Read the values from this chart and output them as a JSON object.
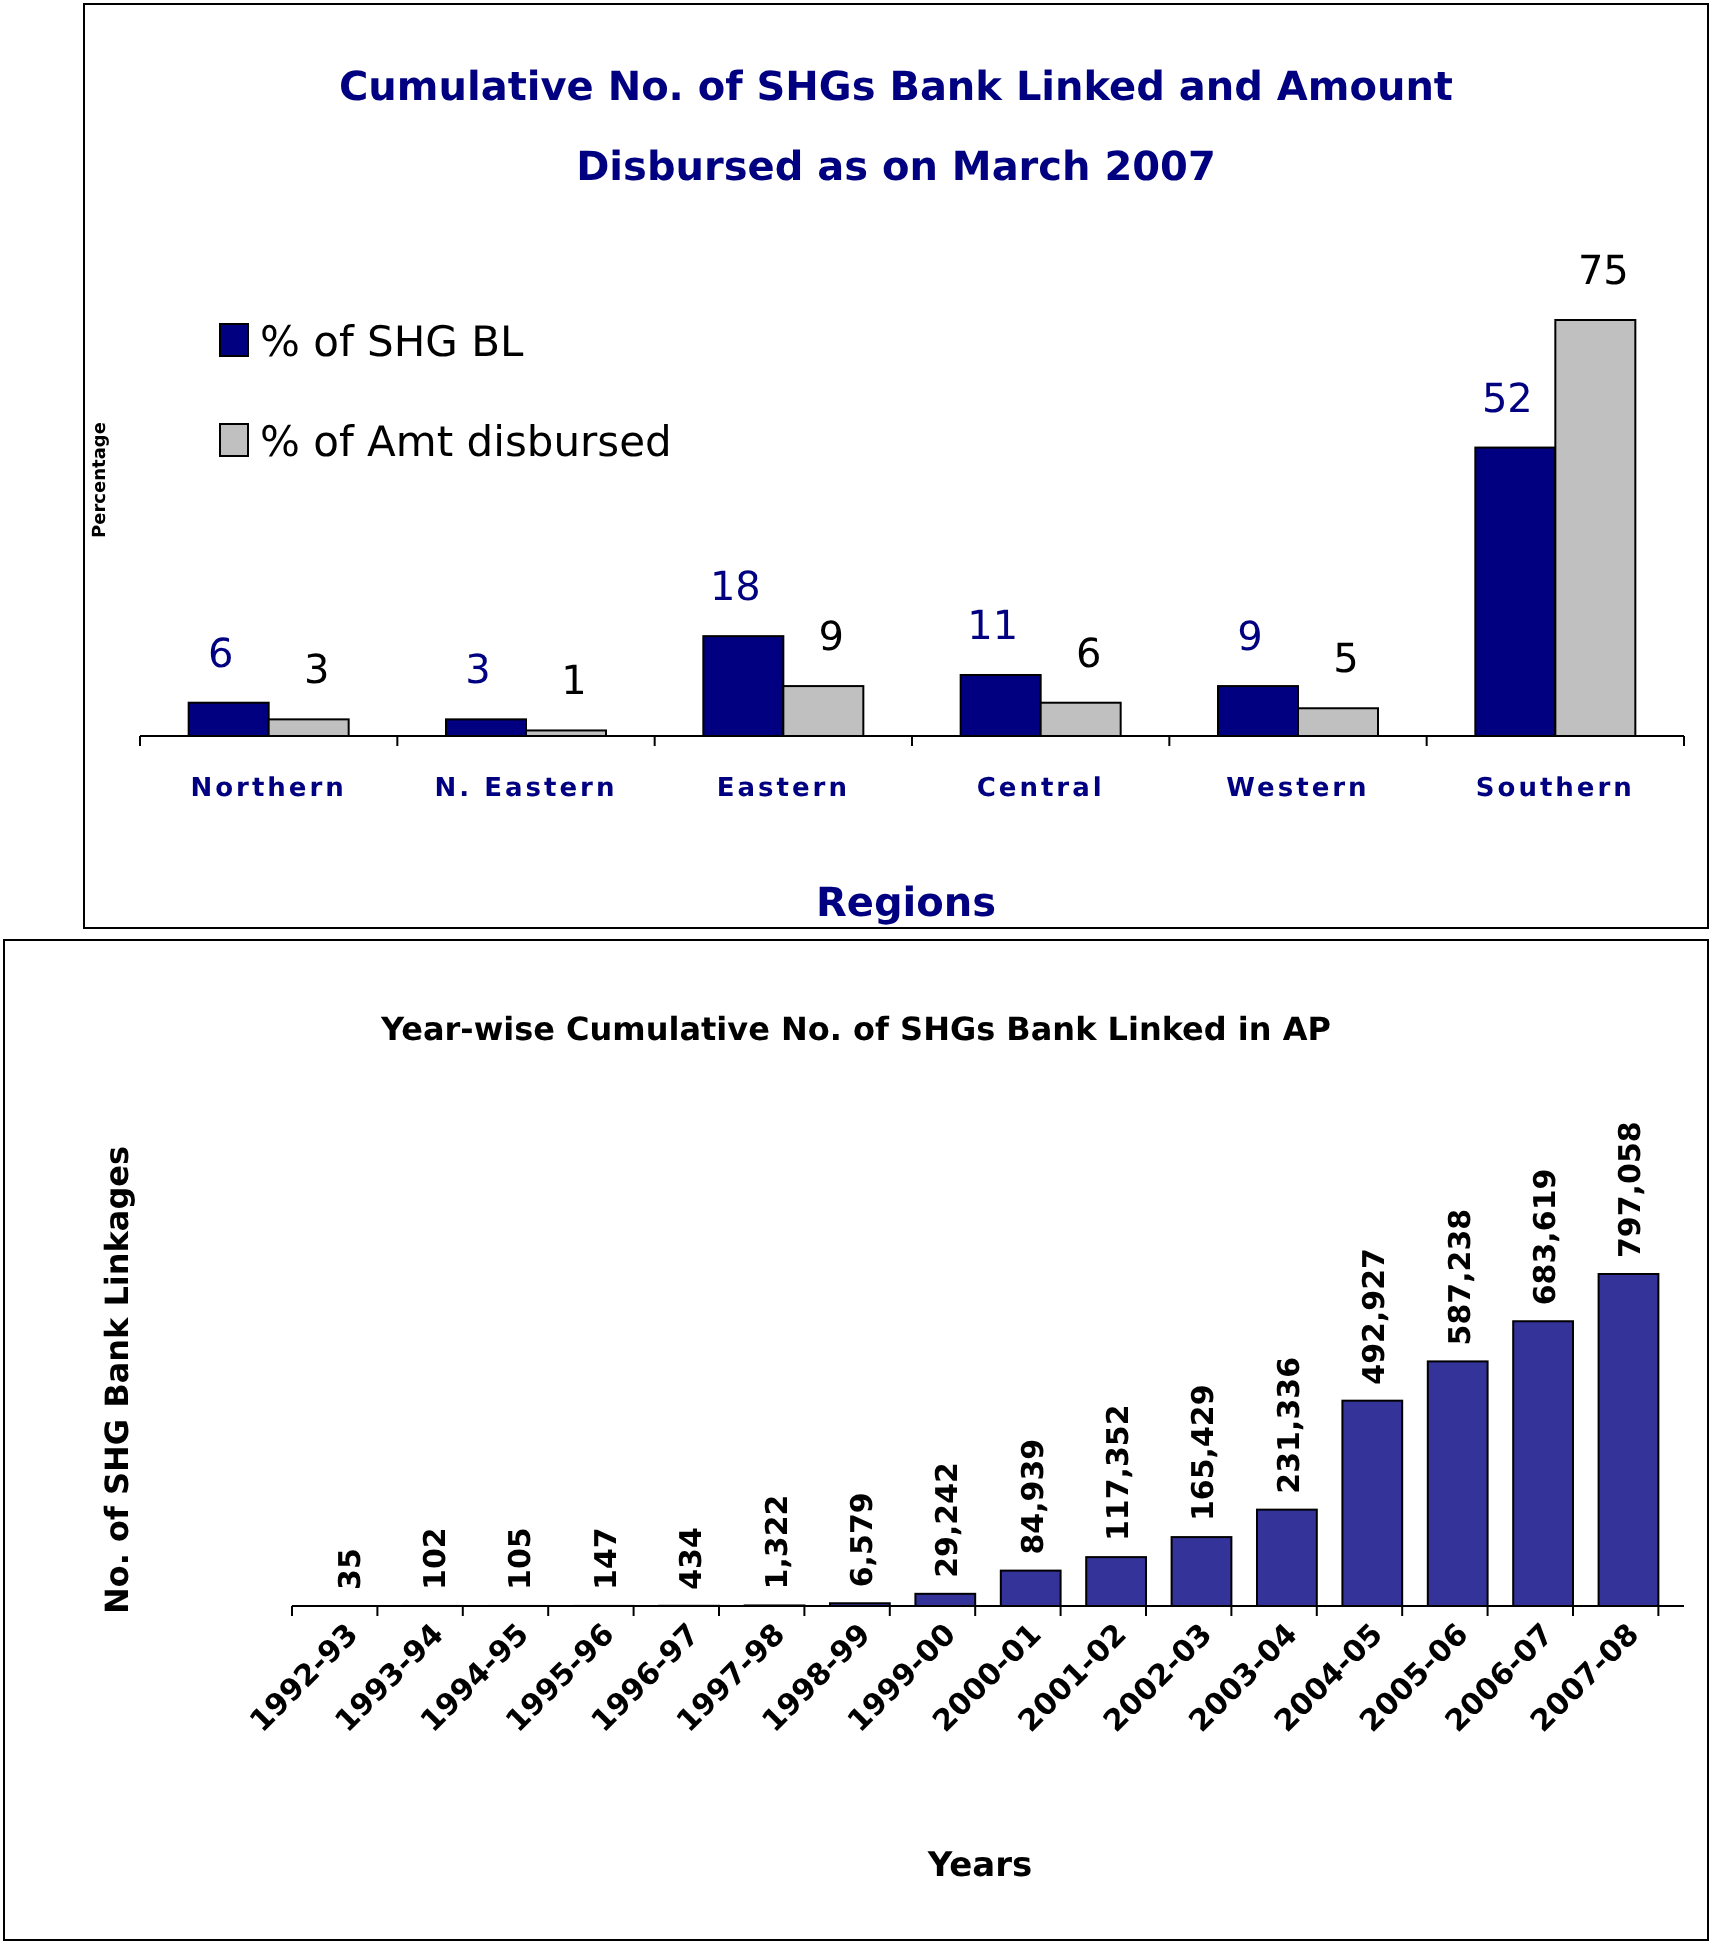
{
  "chart_data": [
    {
      "type": "bar",
      "title": "Cumulative No. of SHGs Bank Linked and Amount Disbursed as on March 2007",
      "xlabel": "Regions",
      "ylabel": "Percentage",
      "categories": [
        "Northern",
        "N. Eastern",
        "Eastern",
        "Central",
        "Western",
        "Southern"
      ],
      "series": [
        {
          "name": "% of SHG BL",
          "color": "#000080",
          "values": [
            6,
            3,
            18,
            11,
            9,
            52
          ]
        },
        {
          "name": "% of Amt disbursed",
          "color": "#c0c0c0",
          "values": [
            3,
            1,
            9,
            6,
            5,
            75
          ]
        }
      ],
      "data_labels": true,
      "legend": "top left"
    },
    {
      "type": "bar",
      "title": "Year-wise Cumulative No. of SHGs Bank Linked in AP",
      "xlabel": "Years",
      "ylabel": "No. of SHG Bank Linkages",
      "categories": [
        "1992-93",
        "1993-94",
        "1994-95",
        "1995-96",
        "1996-97",
        "1997-98",
        "1998-99",
        "1999-00",
        "2000-01",
        "2001-02",
        "2002-03",
        "2003-04",
        "2004-05",
        "2005-06",
        "2006-07",
        "2007-08"
      ],
      "series": [
        {
          "color": "#333399",
          "values": [
            35,
            102,
            105,
            147,
            434,
            1322,
            6579,
            29242,
            84939,
            117352,
            165429,
            231336,
            492927,
            587238,
            683619,
            797058
          ],
          "value_labels": [
            "35",
            "102",
            "105",
            "147",
            "434",
            "1,322",
            "6,579",
            "29,242",
            "84,939",
            "117,352",
            "165,429",
            "231,336",
            "492,927",
            "587,238",
            "683,619",
            "797,058"
          ]
        }
      ]
    }
  ]
}
